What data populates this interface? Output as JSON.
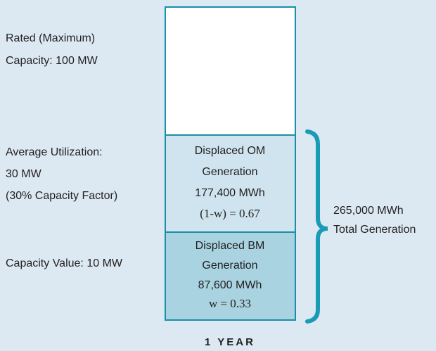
{
  "left_labels": {
    "rated": [
      "Rated (Maximum)",
      "Capacity: 100 MW"
    ],
    "average": [
      "Average Utilization:",
      "30 MW",
      "(30% Capacity Factor)"
    ],
    "capacity_value": [
      "Capacity Value: 10 MW"
    ]
  },
  "box": {
    "om": [
      "Displaced OM",
      "Generation",
      "177,400 MWh",
      "(1-w) = 0.67"
    ],
    "bm": [
      "Displaced BM",
      "Generation",
      "87,600 MWh",
      "w = 0.33"
    ]
  },
  "total": [
    "265,000 MWh",
    "Total Generation"
  ],
  "footer": "1 YEAR"
}
